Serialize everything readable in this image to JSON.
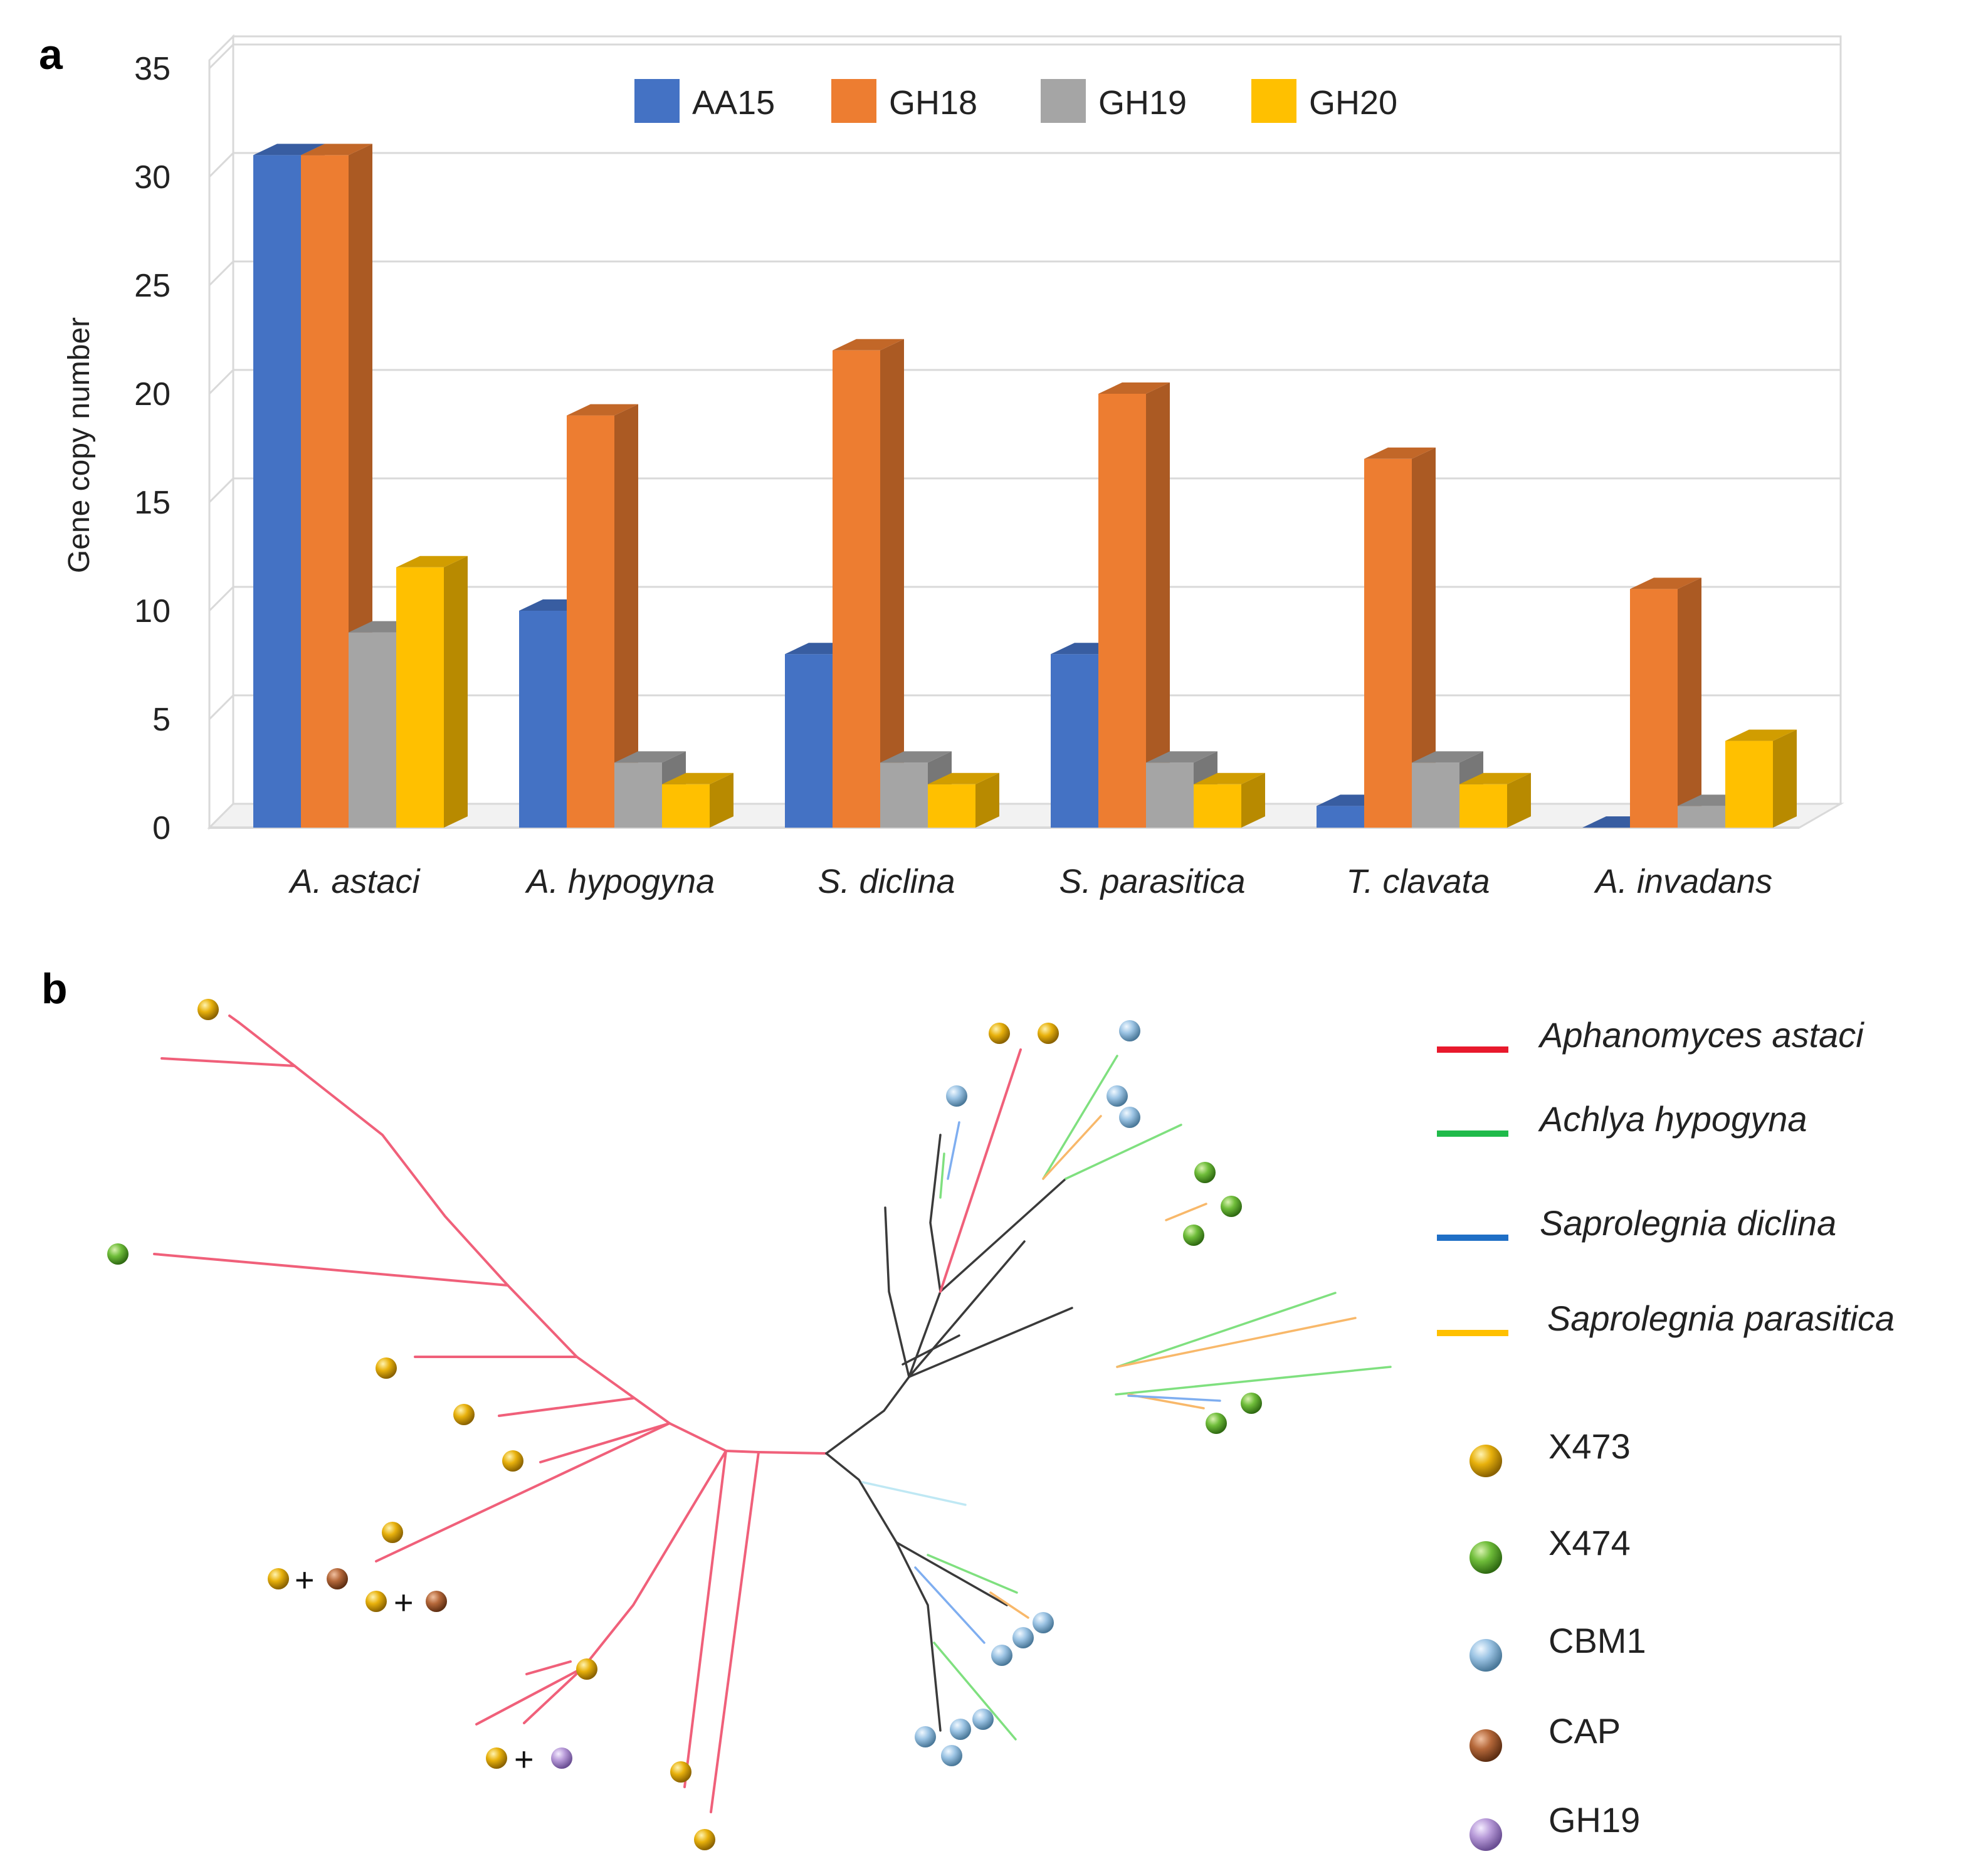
{
  "panels": {
    "a_label": "a",
    "b_label": "b"
  },
  "chart_data": {
    "type": "bar",
    "title": "",
    "xlabel": "",
    "ylabel": "Gene copy number",
    "ylim": [
      0,
      35
    ],
    "yticks": [
      0,
      5,
      10,
      15,
      20,
      25,
      30,
      35
    ],
    "grid": true,
    "legend_position": "top",
    "categories": [
      "A. astaci",
      "A. hypogyna",
      "S. diclina",
      "S. parasitica",
      "T. clavata",
      "A. invadans"
    ],
    "series": [
      {
        "name": "AA15",
        "color": "#4472C4",
        "values": [
          31,
          10,
          8,
          8,
          1,
          0
        ]
      },
      {
        "name": "GH18",
        "color": "#ED7D31",
        "values": [
          31,
          19,
          22,
          20,
          17,
          11
        ]
      },
      {
        "name": "GH19",
        "color": "#A5A5A5",
        "values": [
          9,
          3,
          3,
          3,
          3,
          1
        ]
      },
      {
        "name": "GH20",
        "color": "#FFC000",
        "values": [
          12,
          2,
          2,
          2,
          2,
          4
        ]
      }
    ]
  },
  "tree": {
    "species_legend": [
      {
        "label": "Aphanomyces  astaci",
        "color": "#e8192c"
      },
      {
        "label": "Achlya  hypogyna",
        "color": "#1fba4a"
      },
      {
        "label": "Saprolegnia  diclina",
        "color": "#1f6fc6"
      },
      {
        "label": "Saprolegnia  parasitica",
        "color": "#ffc000"
      }
    ],
    "domain_legend": [
      {
        "label": "X473",
        "color": "#e8b10c"
      },
      {
        "label": "X474",
        "color": "#6fbd3a"
      },
      {
        "label": "CBM1",
        "color": "#9cc4e4"
      },
      {
        "label": "CAP",
        "color": "#b5683a"
      },
      {
        "label": "GH19",
        "color": "#b79ad8"
      }
    ],
    "plus_sign": "+"
  }
}
